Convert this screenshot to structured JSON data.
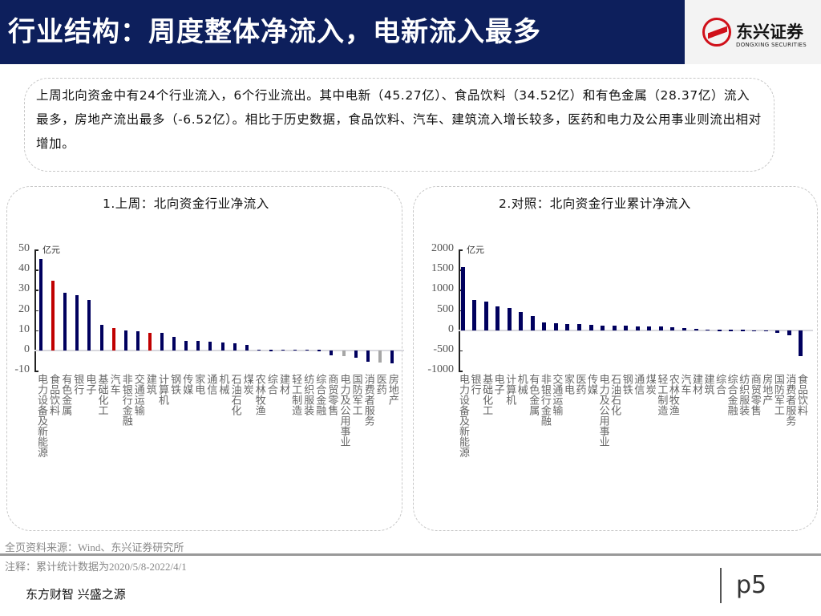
{
  "header": {
    "title": "行业结构：周度整体净流入，电新流入最多",
    "logo_cn": "东兴证券",
    "logo_en": "DONGXING SECURITIES"
  },
  "summary": "上周北向资金中有24个行业流入，6个行业流出。其中电新（45.27亿）、食品饮料（34.52亿）和有色金属（28.37亿）流入最多，房地产流出最多（-6.52亿）。相比于历史数据，食品饮料、汽车、建筑流入增长较多，医药和电力及公用事业则流出相对增加。",
  "colors": {
    "navy": "#00005e",
    "red": "#c00000",
    "gray": "#a6a6a6",
    "title_bg": "#0d1f5c"
  },
  "chart_data": [
    {
      "type": "bar",
      "title": "1.上周：北向资金行业净流入",
      "ylabel": "亿元",
      "ylim": [
        -10,
        50
      ],
      "yticks": [
        50,
        40,
        30,
        20,
        10,
        0,
        -10
      ],
      "categories": [
        "电力设备及新能源",
        "食品饮料",
        "有色金属",
        "银行",
        "电子",
        "基础化工",
        "汽车",
        "非银行金融",
        "交通运输",
        "建筑",
        "计算机",
        "钢铁",
        "传媒",
        "家电",
        "通信",
        "机械",
        "石油石化",
        "煤炭",
        "农林牧渔",
        "综合",
        "建材",
        "轻工制造",
        "纺织服装",
        "综合金融",
        "商贸零售",
        "电力及公用事业",
        "国防军工",
        "消费者服务",
        "医药",
        "房地产"
      ],
      "values": [
        45.27,
        34.52,
        28.37,
        27.5,
        25,
        12.7,
        11,
        10,
        9.3,
        8.8,
        8.5,
        6.5,
        4.7,
        4.6,
        4.2,
        4,
        3.5,
        2.6,
        0.5,
        0.3,
        0.5,
        0.5,
        0.5,
        0.2,
        -2.5,
        -3,
        -3.5,
        -5.5,
        -6,
        -6.52
      ],
      "bar_colors": [
        "navy",
        "red",
        "navy",
        "navy",
        "navy",
        "navy",
        "red",
        "navy",
        "navy",
        "red",
        "navy",
        "navy",
        "navy",
        "navy",
        "navy",
        "navy",
        "navy",
        "navy",
        "navy",
        "navy",
        "navy",
        "navy",
        "navy",
        "navy",
        "navy",
        "gray",
        "navy",
        "navy",
        "gray",
        "navy"
      ]
    },
    {
      "type": "bar",
      "title": "2.对照：北向资金行业累计净流入",
      "ylabel": "亿元",
      "ylim": [
        -1000,
        2000
      ],
      "yticks": [
        2000,
        1500,
        1000,
        500,
        0,
        -500,
        -1000
      ],
      "categories": [
        "电力设备及新能源",
        "银行",
        "基础化工",
        "电子",
        "计算机",
        "机械",
        "有色金属",
        "非银行金融",
        "交通运输",
        "家电",
        "医药",
        "传媒",
        "电力及公用事业",
        "石油石化",
        "钢铁",
        "通信",
        "煤炭",
        "轻工制造",
        "农林牧渔",
        "汽车",
        "建材",
        "建筑",
        "综合",
        "综合金融",
        "纺织服装",
        "商贸零售",
        "房地产",
        "国防军工",
        "消费者服务",
        "食品饮料"
      ],
      "values": [
        1560,
        750,
        710,
        580,
        540,
        460,
        350,
        200,
        180,
        160,
        160,
        140,
        120,
        110,
        110,
        100,
        100,
        90,
        70,
        60,
        30,
        20,
        10,
        5,
        5,
        -20,
        -30,
        -60,
        -120,
        -640
      ],
      "bar_colors": [
        "navy"
      ]
    }
  ],
  "footer": {
    "source": "全页资料来源：Wind、东兴证券研究所",
    "note": "注释：累计统计数据为2020/5/8-2022/4/1",
    "slogan": "东方财智 兴盛之源",
    "page": "p5"
  }
}
